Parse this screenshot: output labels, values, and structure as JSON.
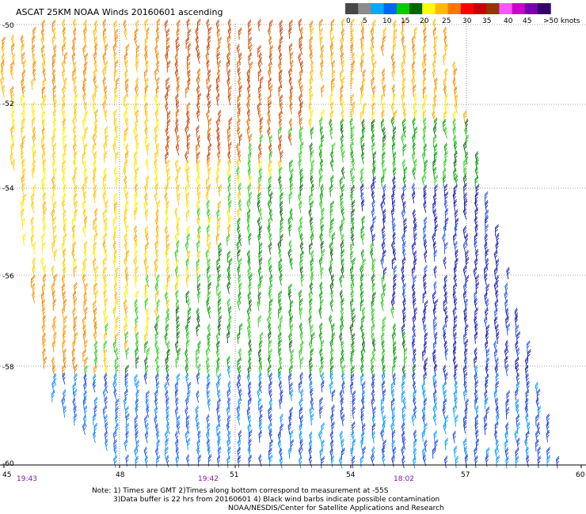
{
  "title": "ASCAT 25KM NOAA Winds 20160601 ascending",
  "legend": {
    "labels": [
      "0",
      "5",
      "10",
      "15",
      "20",
      "25",
      "30",
      "35",
      "40",
      "45",
      ">50 knots"
    ],
    "colors": [
      "#474747",
      "#8c8c8c",
      "#00aaff",
      "#0066ff",
      "#00cc00",
      "#006600",
      "#ffff00",
      "#ffbb00",
      "#ff7700",
      "#ff0000",
      "#cc0000",
      "#993300",
      "#ff55ff",
      "#cc00cc",
      "#7700aa",
      "#330066"
    ]
  },
  "lat_labels": [
    "-50",
    "-52",
    "-54",
    "-56",
    "-58",
    "-60"
  ],
  "lon_labels": [
    "45",
    "48",
    "51",
    "54",
    "57",
    "60"
  ],
  "time_labels": [
    "19:43",
    "19:42",
    "18:02"
  ],
  "notes": {
    "line1": "Note: 1) Times are GMT 2)Times along bottom correspond to measurement at -55S",
    "line2": "3)Data buffer is 22 hrs from 20160601 4) Black wind barbs indicate possible contamination",
    "line3": "NOAA/NESDIS/Center for Satellite Applications and Research"
  }
}
